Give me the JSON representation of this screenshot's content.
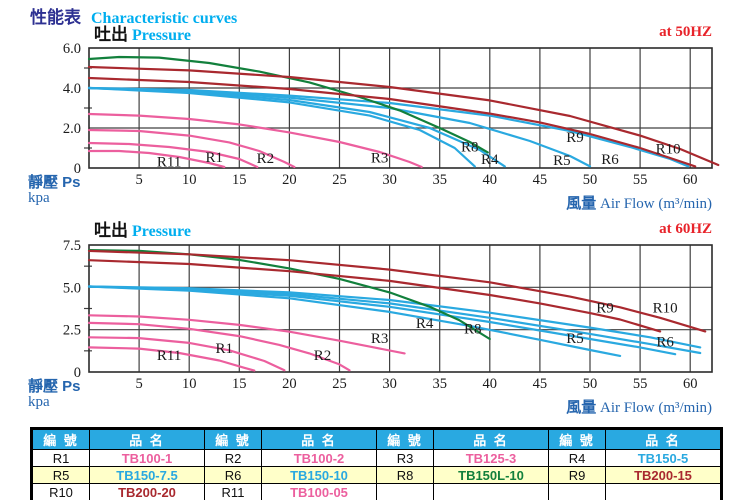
{
  "page": {
    "title_cjk": "性能表",
    "title_en": "Characteristic curves"
  },
  "colors": {
    "pink": "#EC5F9E",
    "blue": "#2AA9E0",
    "green": "#12803C",
    "darkred": "#A9292F",
    "grid": "#404040",
    "tick_text": "#1b1b1b",
    "title_navy": "#2E3192",
    "title_cyan": "#00AEEF",
    "freq_red": "#E8232A",
    "axis_label_blue": "#2565AE",
    "table_header_bg": "#29A9E1",
    "table_alt_row_bg": "#FFFFC9"
  },
  "chart_data": [
    {
      "type": "line",
      "title": {
        "cjk": "吐出",
        "en": "Pressure"
      },
      "freq": "at 50HZ",
      "xlabel": {
        "cjk": "風量",
        "en": "Air Flow (m³/min)"
      },
      "ylabel": {
        "cjk_en": "靜壓 Ps",
        "unit": "kpa"
      },
      "x_ticks": [
        5,
        10,
        15,
        20,
        25,
        30,
        35,
        40,
        45,
        50,
        55,
        60
      ],
      "y_ticks": [
        "0",
        "2.0",
        "4.0",
        "6.0"
      ],
      "y_tick_values": [
        0,
        2,
        4,
        6
      ],
      "xlim": [
        0,
        62.3
      ],
      "ylim": [
        0,
        6
      ],
      "grid": true,
      "series": [
        {
          "name": "R11",
          "color": "pink",
          "points": [
            [
              0,
              0.85
            ],
            [
              3,
              0.85
            ],
            [
              6,
              0.75
            ],
            [
              9,
              0.55
            ],
            [
              12,
              0.25
            ],
            [
              13.5,
              0.05
            ]
          ]
        },
        {
          "name": "R1",
          "color": "pink",
          "points": [
            [
              0,
              1.25
            ],
            [
              4,
              1.2
            ],
            [
              8,
              1.05
            ],
            [
              12,
              0.8
            ],
            [
              15,
              0.45
            ],
            [
              16.8,
              0.05
            ]
          ]
        },
        {
          "name": "R2",
          "color": "pink",
          "points": [
            [
              0,
              1.9
            ],
            [
              5,
              1.85
            ],
            [
              10,
              1.62
            ],
            [
              14,
              1.28
            ],
            [
              17,
              0.85
            ],
            [
              19.5,
              0.3
            ],
            [
              20.5,
              0.05
            ]
          ]
        },
        {
          "name": "R3",
          "color": "pink",
          "points": [
            [
              0,
              2.7
            ],
            [
              5,
              2.62
            ],
            [
              10,
              2.45
            ],
            [
              15,
              2.18
            ],
            [
              20,
              1.78
            ],
            [
              25,
              1.3
            ],
            [
              29,
              0.8
            ],
            [
              32,
              0.3
            ],
            [
              33.2,
              0.05
            ]
          ]
        },
        {
          "name": "",
          "color": "blue",
          "points": [
            [
              0,
              4.0
            ],
            [
              10,
              3.75
            ],
            [
              20,
              3.28
            ],
            [
              28,
              2.62
            ],
            [
              33,
              1.9
            ],
            [
              36.5,
              1.0
            ],
            [
              38.5,
              0.08
            ]
          ]
        },
        {
          "name": "R4",
          "color": "blue",
          "points": [
            [
              0,
              4.0
            ],
            [
              10,
              3.8
            ],
            [
              20,
              3.4
            ],
            [
              28,
              2.8
            ],
            [
              34,
              2.0
            ],
            [
              39,
              0.9
            ],
            [
              41.5,
              0.08
            ]
          ]
        },
        {
          "name": "R5",
          "color": "blue",
          "points": [
            [
              0,
              4.0
            ],
            [
              10,
              3.85
            ],
            [
              20,
              3.52
            ],
            [
              30,
              3.0
            ],
            [
              38,
              2.25
            ],
            [
              44,
              1.35
            ],
            [
              48,
              0.6
            ],
            [
              50,
              0.08
            ]
          ]
        },
        {
          "name": "R6",
          "color": "blue",
          "points": [
            [
              0,
              4.0
            ],
            [
              10,
              3.9
            ],
            [
              20,
              3.62
            ],
            [
              30,
              3.25
            ],
            [
              40,
              2.62
            ],
            [
              48,
              1.85
            ],
            [
              54,
              1.05
            ],
            [
              58,
              0.45
            ],
            [
              59.8,
              0.08
            ]
          ]
        },
        {
          "name": "R8",
          "color": "green",
          "points": [
            [
              0,
              5.45
            ],
            [
              3,
              5.55
            ],
            [
              7,
              5.52
            ],
            [
              12,
              5.25
            ],
            [
              17,
              4.82
            ],
            [
              22,
              4.28
            ],
            [
              27,
              3.55
            ],
            [
              31,
              2.88
            ],
            [
              35,
              2.0
            ],
            [
              38,
              1.3
            ],
            [
              39.8,
              0.78
            ]
          ]
        },
        {
          "name": "R9",
          "color": "darkred",
          "points": [
            [
              0,
              4.5
            ],
            [
              10,
              4.3
            ],
            [
              20,
              3.95
            ],
            [
              30,
              3.45
            ],
            [
              40,
              2.72
            ],
            [
              45,
              2.28
            ],
            [
              50,
              1.7
            ],
            [
              55,
              1.0
            ],
            [
              58,
              0.5
            ],
            [
              60.5,
              0.08
            ]
          ]
        },
        {
          "name": "R10",
          "color": "darkred",
          "points": [
            [
              0,
              5.05
            ],
            [
              10,
              4.88
            ],
            [
              20,
              4.55
            ],
            [
              30,
              4.05
            ],
            [
              40,
              3.38
            ],
            [
              48,
              2.6
            ],
            [
              55,
              1.62
            ],
            [
              59,
              0.95
            ],
            [
              62.8,
              0.15
            ]
          ]
        }
      ],
      "labels": [
        {
          "text": "R11",
          "x": 8,
          "y": 0.33
        },
        {
          "text": "R1",
          "x": 12.5,
          "y": 0.56
        },
        {
          "text": "R2",
          "x": 17.6,
          "y": 0.5
        },
        {
          "text": "R3",
          "x": 29,
          "y": 0.52
        },
        {
          "text": "R4",
          "x": 40,
          "y": 0.44
        },
        {
          "text": "R8",
          "x": 38,
          "y": 1.08
        },
        {
          "text": "R5",
          "x": 47.2,
          "y": 0.4
        },
        {
          "text": "R6",
          "x": 52,
          "y": 0.45
        },
        {
          "text": "R9",
          "x": 48.5,
          "y": 1.55
        },
        {
          "text": "R10",
          "x": 57.8,
          "y": 0.98
        }
      ]
    },
    {
      "type": "line",
      "title": {
        "cjk": "吐出",
        "en": "Pressure"
      },
      "freq": "at 60HZ",
      "xlabel": {
        "cjk": "風量",
        "en": "Air Flow (m³/min)"
      },
      "ylabel": {
        "cjk_en": "靜壓 Ps",
        "unit": "kpa"
      },
      "x_ticks": [
        5,
        10,
        15,
        20,
        25,
        30,
        35,
        40,
        45,
        50,
        55,
        60
      ],
      "y_ticks": [
        "0",
        "2.5",
        "5.0",
        "7.5"
      ],
      "y_tick_values": [
        0,
        2.5,
        5,
        7.5
      ],
      "xlim": [
        0,
        62.3
      ],
      "ylim": [
        0,
        7.5
      ],
      "grid": true,
      "series": [
        {
          "name": "R11",
          "color": "pink",
          "points": [
            [
              0,
              1.45
            ],
            [
              5,
              1.38
            ],
            [
              9,
              1.12
            ],
            [
              13,
              0.68
            ],
            [
              15.5,
              0.25
            ],
            [
              16.5,
              0.08
            ]
          ]
        },
        {
          "name": "R1",
          "color": "pink",
          "points": [
            [
              0,
              2.05
            ],
            [
              5,
              2.0
            ],
            [
              10,
              1.72
            ],
            [
              14,
              1.28
            ],
            [
              17.5,
              0.65
            ],
            [
              19.5,
              0.1
            ]
          ]
        },
        {
          "name": "R2",
          "color": "pink",
          "points": [
            [
              0,
              2.9
            ],
            [
              5,
              2.82
            ],
            [
              10,
              2.55
            ],
            [
              15,
              2.12
            ],
            [
              19,
              1.6
            ],
            [
              22,
              1.1
            ],
            [
              25,
              0.45
            ],
            [
              26,
              0.1
            ]
          ]
        },
        {
          "name": "R3",
          "color": "pink",
          "points": [
            [
              0,
              3.35
            ],
            [
              5,
              3.28
            ],
            [
              10,
              3.08
            ],
            [
              15,
              2.78
            ],
            [
              20,
              2.38
            ],
            [
              25,
              1.85
            ],
            [
              28,
              1.5
            ],
            [
              31.5,
              1.1
            ]
          ]
        },
        {
          "name": "",
          "color": "blue",
          "points": [
            [
              0,
              5.05
            ],
            [
              10,
              4.8
            ],
            [
              20,
              4.35
            ],
            [
              30,
              3.55
            ],
            [
              38,
              2.72
            ],
            [
              45,
              1.9
            ],
            [
              50,
              1.3
            ],
            [
              53,
              0.95
            ]
          ]
        },
        {
          "name": "R4",
          "color": "blue",
          "points": [
            [
              0,
              5.05
            ],
            [
              10,
              4.85
            ],
            [
              20,
              4.5
            ],
            [
              30,
              3.85
            ],
            [
              40,
              2.95
            ],
            [
              50,
              1.95
            ],
            [
              55,
              1.45
            ],
            [
              58.5,
              1.05
            ]
          ]
        },
        {
          "name": "R5",
          "color": "blue",
          "points": [
            [
              0,
              5.05
            ],
            [
              10,
              4.9
            ],
            [
              20,
              4.6
            ],
            [
              30,
              4.05
            ],
            [
              40,
              3.2
            ],
            [
              50,
              2.25
            ],
            [
              56,
              1.65
            ],
            [
              61,
              1.12
            ]
          ]
        },
        {
          "name": "R6",
          "color": "blue",
          "points": [
            [
              0,
              5.05
            ],
            [
              10,
              4.95
            ],
            [
              20,
              4.7
            ],
            [
              30,
              4.25
            ],
            [
              40,
              3.5
            ],
            [
              50,
              2.62
            ],
            [
              56,
              2.05
            ],
            [
              61,
              1.45
            ]
          ]
        },
        {
          "name": "R8",
          "color": "green",
          "points": [
            [
              0,
              7.2
            ],
            [
              5,
              7.15
            ],
            [
              10,
              6.95
            ],
            [
              15,
              6.62
            ],
            [
              20,
              6.12
            ],
            [
              25,
              5.5
            ],
            [
              30,
              4.7
            ],
            [
              34,
              3.85
            ],
            [
              37,
              3.05
            ],
            [
              40,
              1.95
            ]
          ]
        },
        {
          "name": "R9",
          "color": "darkred",
          "points": [
            [
              0,
              6.6
            ],
            [
              10,
              6.38
            ],
            [
              20,
              5.95
            ],
            [
              30,
              5.38
            ],
            [
              40,
              4.55
            ],
            [
              45,
              4.05
            ],
            [
              50,
              3.48
            ],
            [
              53,
              3.1
            ],
            [
              57,
              2.4
            ]
          ]
        },
        {
          "name": "R10",
          "color": "darkred",
          "points": [
            [
              0,
              7.15
            ],
            [
              10,
              6.95
            ],
            [
              20,
              6.6
            ],
            [
              30,
              6.05
            ],
            [
              40,
              5.3
            ],
            [
              48,
              4.45
            ],
            [
              53,
              3.82
            ],
            [
              57,
              3.2
            ],
            [
              61.5,
              2.4
            ]
          ]
        }
      ],
      "labels": [
        {
          "text": "R11",
          "x": 8,
          "y": 1.0
        },
        {
          "text": "R1",
          "x": 13.5,
          "y": 1.42
        },
        {
          "text": "R2",
          "x": 23.3,
          "y": 1.0
        },
        {
          "text": "R3",
          "x": 29,
          "y": 2.0
        },
        {
          "text": "R4",
          "x": 33.5,
          "y": 2.9
        },
        {
          "text": "R8",
          "x": 38.3,
          "y": 2.58
        },
        {
          "text": "R5",
          "x": 48.5,
          "y": 2.0
        },
        {
          "text": "R6",
          "x": 57.5,
          "y": 1.8
        },
        {
          "text": "R9",
          "x": 51.5,
          "y": 3.8
        },
        {
          "text": "R10",
          "x": 57.5,
          "y": 3.82
        }
      ]
    }
  ],
  "table": {
    "header": {
      "col_no": "編 號",
      "col_name": "品 名"
    },
    "rows": [
      [
        {
          "no": "R1",
          "name": "TB100-1",
          "color": "pink"
        },
        {
          "no": "R2",
          "name": "TB100-2",
          "color": "pink"
        },
        {
          "no": "R3",
          "name": "TB125-3",
          "color": "pink"
        },
        {
          "no": "R4",
          "name": "TB150-5",
          "color": "blue"
        }
      ],
      [
        {
          "no": "R5",
          "name": "TB150-7.5",
          "color": "blue"
        },
        {
          "no": "R6",
          "name": "TB150-10",
          "color": "blue"
        },
        {
          "no": "R8",
          "name": "TB150L-10",
          "color": "green"
        },
        {
          "no": "R9",
          "name": "TB200-15",
          "color": "darkred"
        }
      ],
      [
        {
          "no": "R10",
          "name": "TB200-20",
          "color": "darkred"
        },
        {
          "no": "R11",
          "name": "TB100-05",
          "color": "pink"
        },
        {
          "no": "",
          "name": "",
          "color": ""
        },
        {
          "no": "",
          "name": "",
          "color": ""
        }
      ]
    ],
    "row_backgrounds": [
      "#ffffff",
      "#FFFFC9",
      "#ffffff"
    ]
  }
}
